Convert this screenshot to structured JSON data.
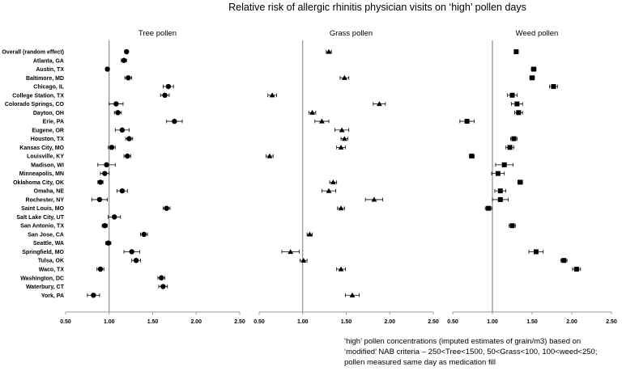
{
  "chart_data": {
    "type": "scatter",
    "title": "Relative risk of allergic rhinitis physician visits on ‘high’ pollen days",
    "categories": [
      "Overall (random effect)",
      "Atlanta, GA",
      "Austin, TX",
      "Baltimore, MD",
      "Chicago, IL",
      "College Station, TX",
      "Colorado Springs, CO",
      "Dayton, OH",
      "Erie, PA",
      "Eugene, OR",
      "Houston, TX",
      "Kansas City, MO",
      "Louisville, KY",
      "Madison, WI",
      "Minneapolis, MN",
      "Oklahoma City, OK",
      "Omaha, NE",
      "Rochester, NY",
      "Saint Louis, MO",
      "Salt Lake City, UT",
      "San Antonio, TX",
      "San Jose, CA",
      "Seattle, WA",
      "Springfield, MO",
      "Tulsa, OK",
      "Waco, TX",
      "Washington, DC",
      "Waterbury, CT",
      "York, PA"
    ],
    "xlim": [
      0.5,
      2.5
    ],
    "xticks": [
      "0.50",
      "1.00",
      "1.50",
      "2.00",
      "2.50"
    ],
    "reference_line": 1.0,
    "panels": [
      {
        "title": "Tree pollen",
        "marker": "circle",
        "values": [
          1.2,
          1.17,
          0.98,
          1.22,
          1.68,
          1.64,
          1.08,
          1.1,
          1.75,
          1.15,
          1.23,
          1.03,
          1.21,
          0.97,
          0.95,
          0.9,
          1.15,
          0.89,
          1.66,
          1.06,
          0.95,
          1.4,
          0.99,
          1.26,
          1.31,
          0.9,
          1.6,
          1.62,
          0.82
        ],
        "ci_low": [
          1.18,
          1.14,
          0.96,
          1.18,
          1.62,
          1.59,
          1.0,
          1.06,
          1.66,
          1.07,
          1.19,
          0.99,
          1.17,
          0.87,
          0.9,
          0.87,
          1.09,
          0.8,
          1.62,
          0.99,
          0.92,
          1.36,
          0.96,
          1.17,
          1.26,
          0.86,
          1.56,
          1.57,
          0.75
        ],
        "ci_high": [
          1.22,
          1.2,
          1.0,
          1.26,
          1.74,
          1.69,
          1.16,
          1.14,
          1.84,
          1.23,
          1.27,
          1.07,
          1.25,
          1.07,
          1.0,
          0.93,
          1.21,
          0.98,
          1.7,
          1.13,
          0.98,
          1.44,
          1.02,
          1.35,
          1.36,
          0.94,
          1.64,
          1.67,
          0.89
        ]
      },
      {
        "title": "Grass pollen",
        "marker": "triangle",
        "values": [
          1.3,
          null,
          null,
          1.48,
          null,
          0.65,
          1.88,
          1.11,
          1.22,
          1.45,
          1.48,
          1.44,
          0.62,
          null,
          null,
          1.35,
          1.3,
          1.82,
          1.44,
          null,
          null,
          1.08,
          null,
          0.86,
          1.01,
          1.44,
          null,
          null,
          1.57
        ],
        "ci_low": [
          1.27,
          null,
          null,
          1.43,
          null,
          0.6,
          1.81,
          1.07,
          1.14,
          1.37,
          1.44,
          1.39,
          0.58,
          null,
          null,
          1.31,
          1.22,
          1.72,
          1.4,
          null,
          null,
          1.05,
          null,
          0.76,
          0.97,
          1.39,
          null,
          null,
          1.49
        ],
        "ci_high": [
          1.33,
          null,
          null,
          1.53,
          null,
          0.7,
          1.95,
          1.15,
          1.3,
          1.53,
          1.52,
          1.49,
          0.66,
          null,
          null,
          1.39,
          1.38,
          1.92,
          1.48,
          null,
          null,
          1.11,
          null,
          0.96,
          1.05,
          1.49,
          null,
          null,
          1.65
        ]
      },
      {
        "title": "Weed pollen",
        "marker": "square",
        "values": [
          1.3,
          null,
          1.52,
          1.5,
          1.77,
          1.25,
          1.31,
          1.33,
          0.68,
          null,
          1.27,
          1.22,
          0.74,
          1.15,
          1.07,
          1.35,
          1.1,
          1.1,
          0.95,
          null,
          1.25,
          null,
          null,
          1.55,
          1.9,
          2.06,
          null,
          null,
          null
        ],
        "ci_low": [
          1.28,
          null,
          1.49,
          1.47,
          1.72,
          1.19,
          1.24,
          1.28,
          0.59,
          null,
          1.23,
          1.17,
          0.71,
          1.04,
          0.99,
          1.32,
          1.03,
          1.0,
          0.91,
          null,
          1.21,
          null,
          null,
          1.46,
          1.86,
          2.01,
          null,
          null,
          null
        ],
        "ci_high": [
          1.32,
          null,
          1.55,
          1.53,
          1.82,
          1.31,
          1.38,
          1.38,
          0.77,
          null,
          1.31,
          1.27,
          0.77,
          1.26,
          1.15,
          1.38,
          1.17,
          1.2,
          0.99,
          null,
          1.29,
          null,
          null,
          1.64,
          1.94,
          2.11,
          null,
          null,
          null
        ]
      }
    ]
  },
  "footnote": [
    "‘high’ pollen concentrations (imputed estimates of grain/m3) based on",
    "‘modified’ NAB criteria – 250<Tree<1500, 50<Grass<100, 100<weed<250;",
    "pollen measured same day as medication fill"
  ]
}
